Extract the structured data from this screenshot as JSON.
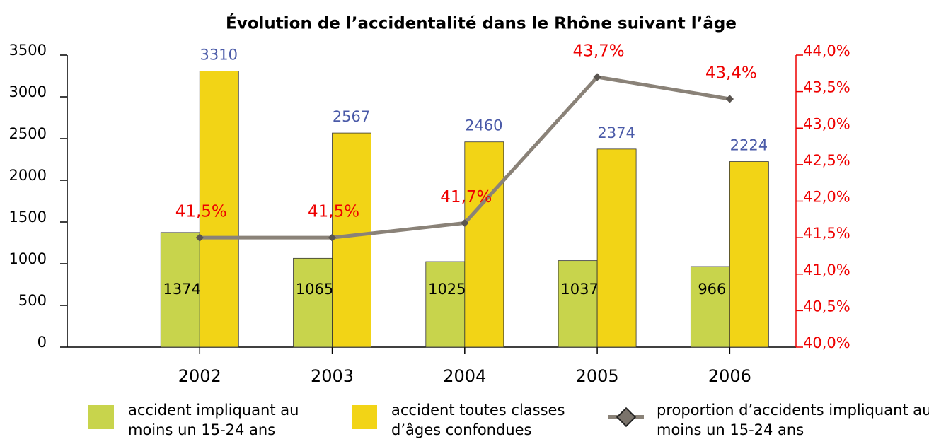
{
  "chart_data": {
    "type": "bar",
    "title": "Évolution de l’accidentalité dans le Rhône suivant l’âge",
    "categories": [
      "2002",
      "2003",
      "2004",
      "2005",
      "2006"
    ],
    "series": [
      {
        "name": "accident impliquant au moins un 15-24 ans",
        "color": "#c8d44c",
        "values": [
          1374,
          1065,
          1025,
          1037,
          966
        ]
      },
      {
        "name": "accident toutes classes d’âges confondues",
        "color": "#f2d416",
        "values": [
          3310,
          2567,
          2460,
          2374,
          2224
        ]
      },
      {
        "name": "proportion d’accidents impliquant au moins un 15-24 ans",
        "type": "line",
        "axis": "y2",
        "color": "#8a8278",
        "values": [
          41.5,
          41.5,
          41.7,
          43.7,
          43.4
        ],
        "value_labels": [
          "41,5%",
          "41,5%",
          "41,7%",
          "43,7%",
          "43,4%"
        ]
      }
    ],
    "ylim": [
      0,
      3500
    ],
    "yticks": [
      0,
      500,
      1000,
      1500,
      2000,
      2500,
      3000,
      3500
    ],
    "y2lim": [
      40,
      44
    ],
    "y2ticks": [
      {
        "value": 40,
        "label": "40,0%"
      },
      {
        "value": 40.5,
        "label": "40,5%"
      },
      {
        "value": 41,
        "label": "41,0%"
      },
      {
        "value": 41.5,
        "label": "41,5%"
      },
      {
        "value": 42,
        "label": "42,0%"
      },
      {
        "value": 42.5,
        "label": "42,5%"
      },
      {
        "value": 43,
        "label": "43,0%"
      },
      {
        "value": 43.5,
        "label": "43,5%"
      },
      {
        "value": 44,
        "label": "44,0%"
      }
    ]
  }
}
